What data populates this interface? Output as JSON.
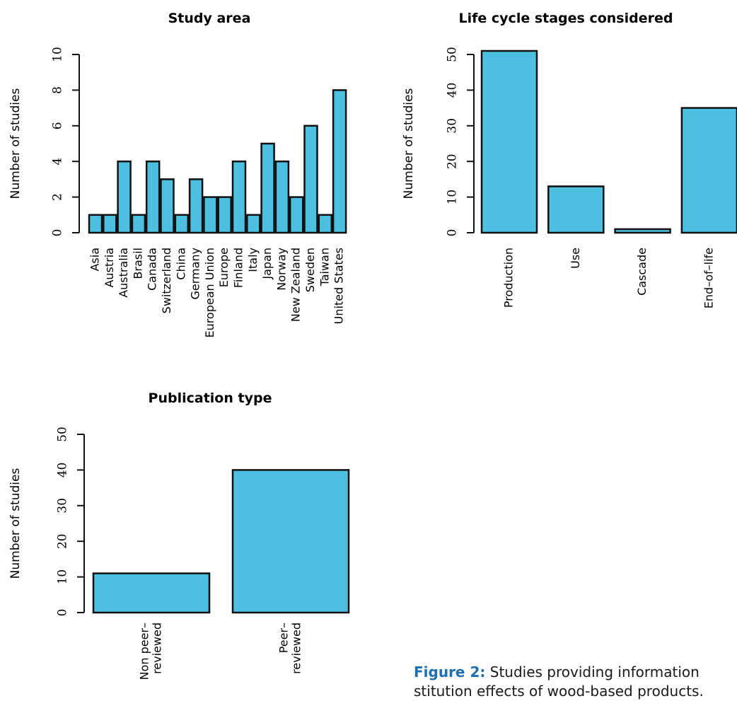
{
  "chart_data": [
    {
      "type": "bar",
      "title": "Study area",
      "ylabel": "Number of studies",
      "xlabel": "",
      "ylim": [
        0,
        10
      ],
      "yticks": [
        0,
        2,
        4,
        6,
        8,
        10
      ],
      "categories": [
        "Asia",
        "Austria",
        "Australia",
        "Brasil",
        "Canada",
        "Switzerland",
        "China",
        "Germany",
        "European Union",
        "Europe",
        "Finland",
        "Italy",
        "Japan",
        "Norway",
        "New Zealand",
        "Sweden",
        "Taiwan",
        "United States"
      ],
      "values": [
        1,
        1,
        4,
        1,
        4,
        3,
        1,
        3,
        2,
        2,
        4,
        1,
        5,
        4,
        2,
        6,
        1,
        8
      ],
      "color": "#4dbfe1"
    },
    {
      "type": "bar",
      "title": "Life cycle stages considered",
      "ylabel": "Number of studies",
      "xlabel": "",
      "ylim": [
        0,
        50
      ],
      "yticks": [
        0,
        10,
        20,
        30,
        40,
        50
      ],
      "categories": [
        "Production",
        "Use",
        "Cascade",
        "End–of–life"
      ],
      "values": [
        51,
        13,
        1,
        35
      ],
      "color": "#4dbfe1"
    },
    {
      "type": "bar",
      "title": "Publication type",
      "ylabel": "Number of studies",
      "xlabel": "",
      "ylim": [
        0,
        50
      ],
      "yticks": [
        0,
        10,
        20,
        30,
        40,
        50
      ],
      "categories": [
        [
          "Non peer–",
          "reviewed"
        ],
        [
          "Peer–",
          "reviewed"
        ]
      ],
      "values": [
        11,
        40
      ],
      "color": "#4dbfe1"
    }
  ],
  "caption": {
    "label": "Figure 2:",
    "line1": " Studies providing information",
    "line2": "stitution effects of wood-based products."
  }
}
